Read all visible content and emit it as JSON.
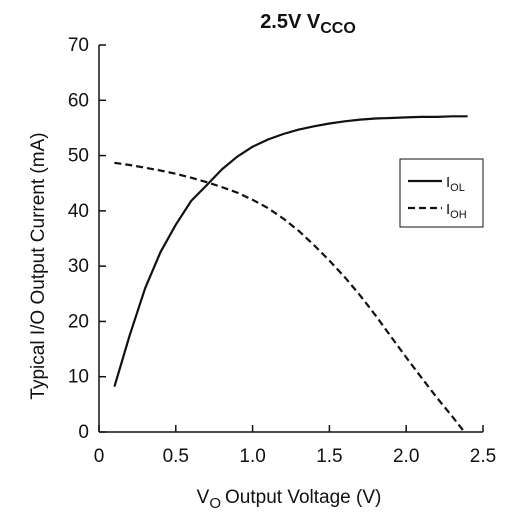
{
  "chart_data": {
    "type": "line",
    "title": "2.5V V",
    "title_sub": "CCO",
    "xlabel_prefix": "V",
    "xlabel_sub": "O",
    "xlabel": "Output Voltage (V)",
    "ylabel": "Typical I/O Output Current (mA)",
    "xlim": [
      0,
      2.5
    ],
    "ylim": [
      0,
      70
    ],
    "x_ticks": [
      "0",
      "0.5",
      "1.0",
      "1.5",
      "2.0",
      "2.5"
    ],
    "y_ticks": [
      "0",
      "10",
      "20",
      "30",
      "40",
      "50",
      "60",
      "70"
    ],
    "grid": false,
    "legend_position": "right",
    "series": [
      {
        "name": "I",
        "name_sub": "OL",
        "style": "solid",
        "color": "#111111",
        "points": [
          [
            0.1,
            8.2
          ],
          [
            0.2,
            17.5
          ],
          [
            0.3,
            26.0
          ],
          [
            0.4,
            32.5
          ],
          [
            0.5,
            37.5
          ],
          [
            0.6,
            41.8
          ],
          [
            0.7,
            44.6
          ],
          [
            0.8,
            47.5
          ],
          [
            0.9,
            49.8
          ],
          [
            1.0,
            51.6
          ],
          [
            1.1,
            52.9
          ],
          [
            1.2,
            53.9
          ],
          [
            1.3,
            54.7
          ],
          [
            1.4,
            55.3
          ],
          [
            1.5,
            55.8
          ],
          [
            1.6,
            56.2
          ],
          [
            1.7,
            56.5
          ],
          [
            1.8,
            56.7
          ],
          [
            1.9,
            56.8
          ],
          [
            2.0,
            56.9
          ],
          [
            2.1,
            57.0
          ],
          [
            2.2,
            57.0
          ],
          [
            2.3,
            57.1
          ],
          [
            2.4,
            57.1
          ]
        ]
      },
      {
        "name": "I",
        "name_sub": "OH",
        "style": "dashed",
        "color": "#111111",
        "points": [
          [
            0.1,
            48.7
          ],
          [
            0.2,
            48.3
          ],
          [
            0.3,
            47.8
          ],
          [
            0.4,
            47.3
          ],
          [
            0.5,
            46.7
          ],
          [
            0.6,
            46.0
          ],
          [
            0.7,
            45.2
          ],
          [
            0.8,
            44.3
          ],
          [
            0.9,
            43.3
          ],
          [
            1.0,
            42.0
          ],
          [
            1.1,
            40.5
          ],
          [
            1.2,
            38.6
          ],
          [
            1.3,
            36.4
          ],
          [
            1.4,
            33.8
          ],
          [
            1.5,
            31.0
          ],
          [
            1.6,
            28.0
          ],
          [
            1.7,
            24.7
          ],
          [
            1.8,
            21.1
          ],
          [
            1.9,
            17.3
          ],
          [
            2.0,
            13.5
          ],
          [
            2.1,
            9.8
          ],
          [
            2.2,
            6.2
          ],
          [
            2.3,
            2.8
          ],
          [
            2.37,
            0.3
          ]
        ]
      }
    ]
  }
}
